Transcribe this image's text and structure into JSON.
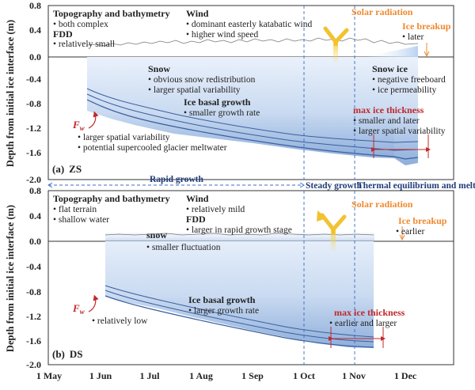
{
  "axes": {
    "y_label_top": "Depth from initial ice interface (m)",
    "y_label_bottom": "Depth from initial ice interface (m)",
    "y_ticks_top": [
      "0.8",
      "0.4",
      "0.0",
      "-0.4",
      "-0.8",
      "-1.2",
      "-1.6",
      "-2.0"
    ],
    "y_ticks_bottom": [
      "0.8",
      "0.4",
      "0.0",
      "-0.4",
      "-0.8",
      "-1.2",
      "-1.6",
      "-2.0"
    ],
    "x_ticks": [
      "1 May",
      "1 Jun",
      "1 Jul",
      "1 Aug",
      "1 Sep",
      "1 Oct",
      "1 Nov",
      "1 Dec"
    ]
  },
  "stages": {
    "rapid": "Rapid growth",
    "steady": "Steady growth",
    "thermal": "Thermal equilibrium and melt"
  },
  "zs": {
    "label_letter": "(a)",
    "label_name": "ZS",
    "topo_title": "Topography and bathymetry",
    "topo_items": [
      "both complex"
    ],
    "fdd_title": "FDD",
    "fdd_items": [
      "relatively small"
    ],
    "wind_title": "Wind",
    "wind_items": [
      "dominant easterly katabatic wind",
      "higher wind speed"
    ],
    "solar": "Solar radiation",
    "breakup_title": "Ice breakup",
    "breakup_items": [
      "later"
    ],
    "snow_title": "Snow",
    "snow_items": [
      "obvious snow redistribution",
      "larger spatial variability"
    ],
    "snowice_title": "Snow ice",
    "snowice_items": [
      "negative freeboard",
      "ice permeability"
    ],
    "basal_title": "Ice basal growth",
    "basal_items": [
      "smaller growth rate"
    ],
    "fw_main": "F",
    "fw_sub": "w",
    "fw_items": [
      "larger spatial variability",
      "potential supercooled glacier meltwater"
    ],
    "maxthick_title": "max ice thickness",
    "maxthick_items": [
      "smaller and later",
      "larger spatial variability"
    ]
  },
  "ds": {
    "label_letter": "(b)",
    "label_name": "DS",
    "topo_title": "Topography and bathymetry",
    "topo_items": [
      "flat terrain",
      "shallow water"
    ],
    "wind_title": "Wind",
    "wind_items": [
      "relatively mild"
    ],
    "fdd_title": "FDD",
    "fdd_items": [
      "larger in rapid growth stage"
    ],
    "solar": "Solar radiation",
    "breakup_title": "Ice breakup",
    "breakup_items": [
      "earlier"
    ],
    "snow_title": "snow",
    "snow_items": [
      "smaller fluctuation"
    ],
    "basal_title": "Ice basal growth",
    "basal_items": [
      "larger growth rate"
    ],
    "fw_main": "F",
    "fw_sub": "w",
    "fw_items": [
      "relatively low"
    ],
    "maxthick_title": "max ice thickness",
    "maxthick_items": [
      "earlier and larger"
    ]
  },
  "colors": {
    "ice_top": "#dfe9f7",
    "ice_bottom": "#9db8de",
    "ice_edge": "#3a5f9e",
    "stage_line": "#3b6bc4",
    "orange": "#ef8a2f",
    "red": "#c0292b",
    "solar_yellow": "#f2c230"
  }
}
